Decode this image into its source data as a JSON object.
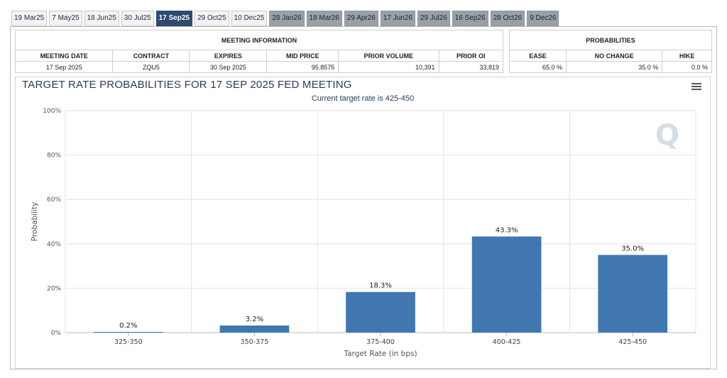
{
  "tabs": [
    {
      "label": "19 Mar25",
      "state": "normal"
    },
    {
      "label": "7 May25",
      "state": "normal"
    },
    {
      "label": "18 Jun25",
      "state": "normal"
    },
    {
      "label": "30 Jul25",
      "state": "normal"
    },
    {
      "label": "17 Sep25",
      "state": "active"
    },
    {
      "label": "29 Oct25",
      "state": "normal"
    },
    {
      "label": "10 Dec25",
      "state": "normal"
    },
    {
      "label": "28 Jan26",
      "state": "future"
    },
    {
      "label": "18 Mar26",
      "state": "future"
    },
    {
      "label": "29 Apr26",
      "state": "future"
    },
    {
      "label": "17 Jun26",
      "state": "future"
    },
    {
      "label": "29 Jul26",
      "state": "future"
    },
    {
      "label": "16 Sep26",
      "state": "future"
    },
    {
      "label": "28 Oct26",
      "state": "future"
    },
    {
      "label": "9 Dec26",
      "state": "future"
    }
  ],
  "meeting_info": {
    "heading": "MEETING INFORMATION",
    "columns": [
      "MEETING DATE",
      "CONTRACT",
      "EXPIRES",
      "MID PRICE",
      "PRIOR VOLUME",
      "PRIOR OI"
    ],
    "row": [
      "17 Sep 2025",
      "ZQU5",
      "30 Sep 2025",
      "95.8575",
      "10,391",
      "33,819"
    ]
  },
  "probabilities": {
    "heading": "PROBABILITIES",
    "columns": [
      "EASE",
      "NO CHANGE",
      "HIKE"
    ],
    "row": [
      "65.0 %",
      "35.0 %",
      "0.0 %"
    ]
  },
  "chart": {
    "menu_icon": "hamburger-menu-icon",
    "watermark": "Q",
    "bar_color": "#4077b1"
  },
  "chart_data": {
    "type": "bar",
    "title": "TARGET RATE PROBABILITIES FOR 17 SEP 2025 FED MEETING",
    "subtitle": "Current target rate is 425-450",
    "xlabel": "Target Rate (in bps)",
    "ylabel": "Probability",
    "categories": [
      "325-350",
      "350-375",
      "375-400",
      "400-425",
      "425-450"
    ],
    "values": [
      0.2,
      3.2,
      18.3,
      43.3,
      35.0
    ],
    "data_labels": [
      "0.2%",
      "3.2%",
      "18.3%",
      "43.3%",
      "35.0%"
    ],
    "ylim": [
      0,
      100
    ],
    "yticks": [
      "0%",
      "20%",
      "40%",
      "60%",
      "80%",
      "100%"
    ],
    "grid": true
  }
}
